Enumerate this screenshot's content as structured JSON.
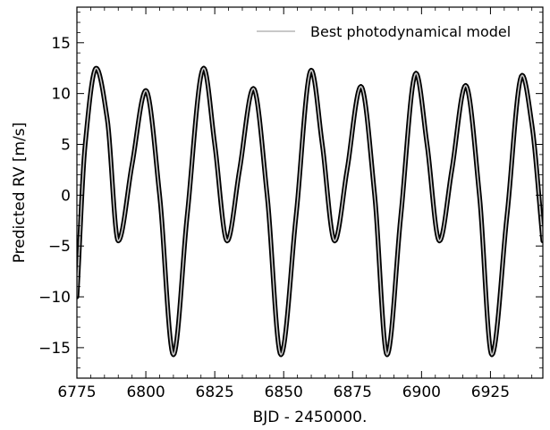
{
  "chart_data": {
    "type": "line",
    "title": "",
    "xlabel": "BJD - 2450000.",
    "ylabel": "Predicted RV [m/s]",
    "xlim": [
      6775,
      6944
    ],
    "ylim": [
      -18,
      18.5
    ],
    "xticks": [
      6775,
      6800,
      6825,
      6850,
      6875,
      6900,
      6925
    ],
    "yticks": [
      -15,
      -10,
      -5,
      0,
      5,
      10,
      15
    ],
    "ytick_labels": [
      "−15",
      "−10",
      "−5",
      "0",
      "5",
      "10",
      "15"
    ],
    "grid": false,
    "legend_position": "top-right",
    "series": [
      {
        "name": "Best photodynamical model",
        "color": "#c8c8c8",
        "envelope_color": "#000000",
        "x": [
          6775,
          6778,
          6782,
          6786,
          6790,
          6795,
          6800,
          6805,
          6810,
          6815,
          6821,
          6825,
          6829.5,
          6834,
          6839,
          6844,
          6849,
          6854.5,
          6860,
          6864,
          6868.5,
          6873,
          6878,
          6883,
          6887.5,
          6892.5,
          6898,
          6902,
          6906.5,
          6911,
          6916,
          6921,
          6925.5,
          6931,
          6936.5,
          6940,
          6944
        ],
        "y": [
          -10,
          5,
          12.5,
          7.5,
          -4.5,
          3,
          10.3,
          0,
          -15.7,
          -2,
          12.5,
          5,
          -4.5,
          2.5,
          10.5,
          0,
          -15.7,
          -2,
          12.3,
          5,
          -4.5,
          2.5,
          10.7,
          0,
          -15.7,
          -2,
          12,
          5,
          -4.5,
          2.5,
          10.8,
          0,
          -15.7,
          -2,
          11.8,
          7,
          -4.5
        ]
      }
    ]
  }
}
